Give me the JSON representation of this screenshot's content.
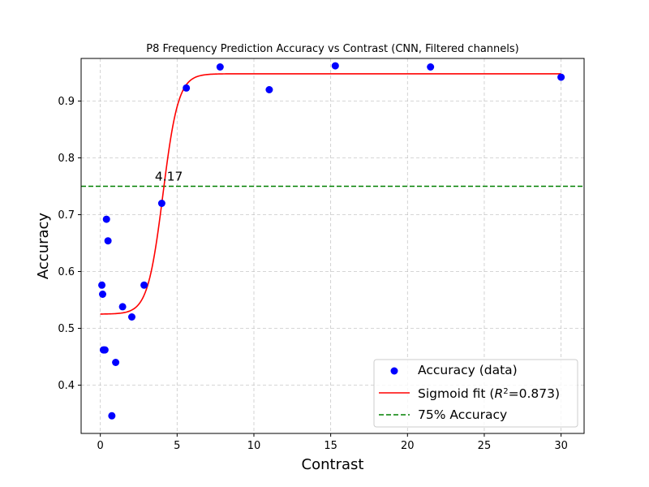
{
  "chart_data": {
    "type": "scatter",
    "title": "P8 Frequency Prediction Accuracy vs Contrast (CNN, Filtered channels)",
    "xlabel": "Contrast",
    "ylabel": "Accuracy",
    "xlim": [
      -1.25,
      31.5
    ],
    "ylim": [
      0.315,
      0.975
    ],
    "xticks": [
      0,
      5,
      10,
      15,
      20,
      25,
      30
    ],
    "yticks": [
      0.4,
      0.5,
      0.6,
      0.7,
      0.8,
      0.9
    ],
    "ytick_labels": [
      "0.4",
      "0.5",
      "0.6",
      "0.7",
      "0.8",
      "0.9"
    ],
    "grid": true,
    "legend_position": "lower-right",
    "colors": {
      "points": "#0000ff",
      "fit": "#ff0000",
      "threshold": "#008000"
    },
    "series": [
      {
        "name": "Accuracy (data)",
        "kind": "scatter",
        "x": [
          0.1,
          0.15,
          0.2,
          0.3,
          0.4,
          0.5,
          0.75,
          1.0,
          1.45,
          2.05,
          2.85,
          4.0,
          5.6,
          7.8,
          11.0,
          15.3,
          21.5,
          30.0
        ],
        "y": [
          0.576,
          0.56,
          0.462,
          0.462,
          0.692,
          0.654,
          0.346,
          0.44,
          0.538,
          0.52,
          0.576,
          0.72,
          0.923,
          0.96,
          0.92,
          0.962,
          0.96,
          0.942
        ]
      },
      {
        "name_prefix": "Sigmoid fit (",
        "name_r": "R",
        "name_sup": "2",
        "name_suffix": "=0.873)",
        "kind": "sigmoid",
        "params": {
          "L": 0.423,
          "k": 2.0,
          "x0": 4.08,
          "b": 0.525
        },
        "x_range": [
          0.0,
          30.0
        ]
      },
      {
        "name": "75% Accuracy",
        "kind": "hline",
        "y": 0.75
      }
    ],
    "annotations": [
      {
        "text": "4.17",
        "x": 3.55,
        "y": 0.76
      }
    ]
  }
}
